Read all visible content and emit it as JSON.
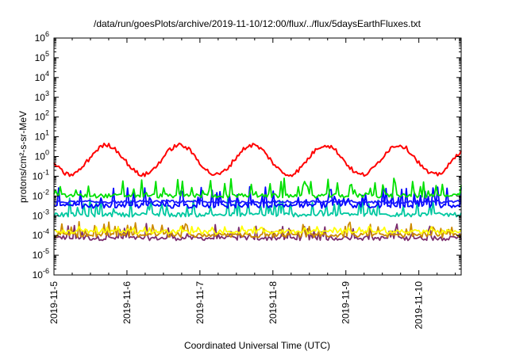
{
  "chart_data": {
    "type": "line",
    "title": "/data/run/goesPlots/archive/2019-11-10/12:00/flux/../flux/5daysEarthFluxes.txt",
    "xlabel": "Coordinated Universal Time (UTC)",
    "ylabel": "protons/cm²-s-sr-MeV",
    "yscale": "log",
    "ylim_exponent": [
      -6,
      6
    ],
    "y_tick_labels": [
      {
        "base": "10",
        "exp": "-6"
      },
      {
        "base": "10",
        "exp": "-5"
      },
      {
        "base": "10",
        "exp": "-4"
      },
      {
        "base": "10",
        "exp": "-3"
      },
      {
        "base": "10",
        "exp": "-2"
      },
      {
        "base": "10",
        "exp": "-1"
      },
      {
        "base": "10",
        "exp": "0"
      },
      {
        "base": "10",
        "exp": "1"
      },
      {
        "base": "10",
        "exp": "2"
      },
      {
        "base": "10",
        "exp": "3"
      },
      {
        "base": "10",
        "exp": "4"
      },
      {
        "base": "10",
        "exp": "5"
      },
      {
        "base": "10",
        "exp": "6"
      }
    ],
    "x_range_days": [
      0,
      5.58
    ],
    "x_tick_labels": [
      "2019-11-5",
      "2019-11-6",
      "2019-11-7",
      "2019-11-8",
      "2019-11-9",
      "2019-11-10"
    ],
    "x_tick_days": [
      0,
      1,
      2,
      3,
      4,
      5
    ],
    "grid": false,
    "series": [
      {
        "color": "#7b2d6e",
        "kind": "spiky",
        "base": 7e-05,
        "spike": 0.0004
      },
      {
        "color": "#cc8a00",
        "kind": "spiky",
        "base": 0.0001,
        "spike": 0.0005
      },
      {
        "color": "#ffff00",
        "kind": "spiky",
        "base": 0.00015,
        "spike": 0.0003
      },
      {
        "color": "#00c8a0",
        "kind": "spiky",
        "base": 0.0011,
        "spike": 0.008
      },
      {
        "color": "#0000ff",
        "kind": "spiky",
        "base": 0.003,
        "spike": 0.03
      },
      {
        "color": "#1a1aff",
        "kind": "flat",
        "base": 0.005,
        "spike": 0.006
      },
      {
        "color": "#00e000",
        "kind": "spiky",
        "base": 0.01,
        "spike": 0.08
      },
      {
        "color": "#ff0000",
        "kind": "diurnal",
        "base": 0.4,
        "spike": 3
      }
    ]
  }
}
